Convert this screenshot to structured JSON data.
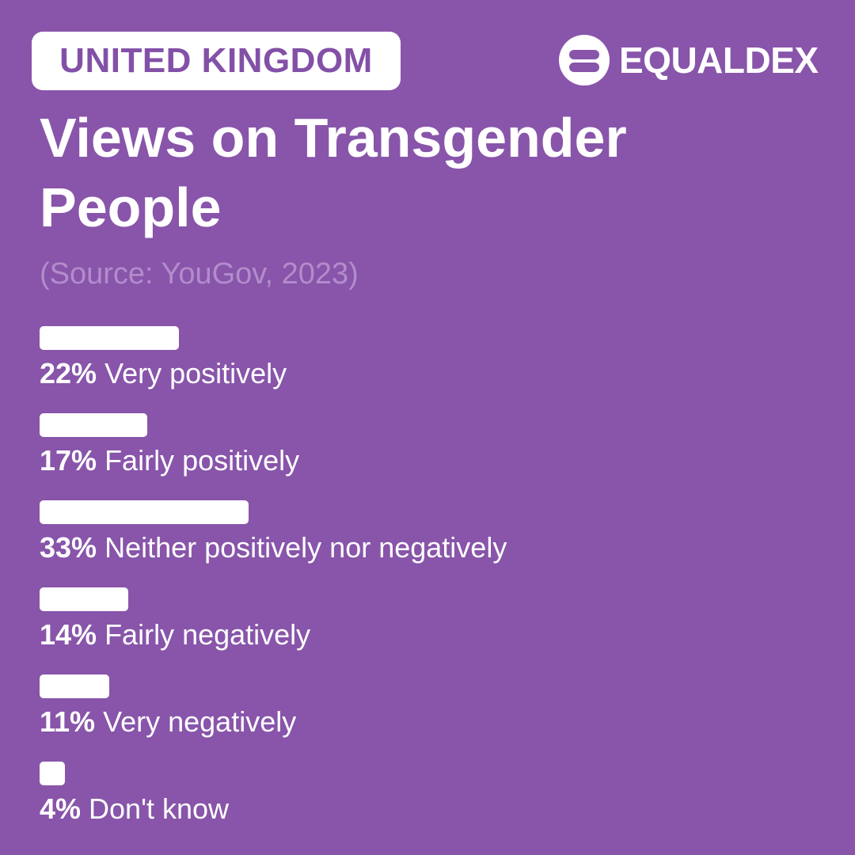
{
  "header": {
    "country": "UNITED KINGDOM",
    "brand_name": "EQUALDEX",
    "brand_icon": "equaldex-logo-icon"
  },
  "title": "Views on Transgender People",
  "source": "(Source: YouGov, 2023)",
  "colors": {
    "background": "#8855aa",
    "badge_text": "#8350a8",
    "bar": "#ffffff",
    "source_text": "#b38ccb"
  },
  "chart_data": {
    "type": "bar",
    "orientation": "horizontal",
    "title": "Views on Transgender People",
    "categories": [
      "Very positively",
      "Fairly positively",
      "Neither positively nor negatively",
      "Fairly negatively",
      "Very negatively",
      "Don't know"
    ],
    "values": [
      22,
      17,
      33,
      14,
      11,
      4
    ],
    "value_labels": [
      "22%",
      "17%",
      "33%",
      "14%",
      "11%",
      "4%"
    ],
    "unit": "%",
    "grid": false,
    "legend": "none"
  }
}
